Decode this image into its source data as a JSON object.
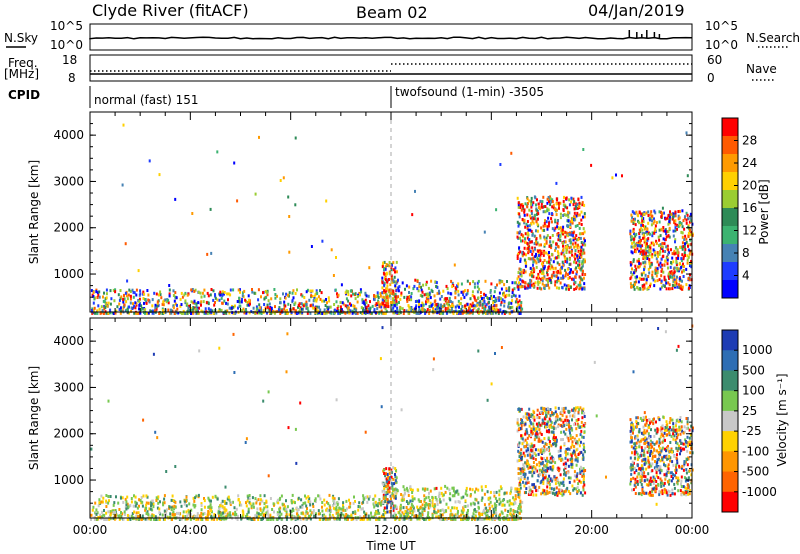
{
  "header": {
    "station": "Clyde River (fitACF)",
    "beam": "Beam 02",
    "date": "04/Jan/2019"
  },
  "top_panels": {
    "nsky_label": "N.Sky",
    "nsky_ticks": [
      "10^5",
      "10^0"
    ],
    "nsearch_label": "N.Search",
    "nsearch_ticks": [
      "10^5",
      "10^0"
    ],
    "freq_label_line1": "Freq.",
    "freq_label_line2": "[MHz]",
    "freq_ticks": [
      "18",
      "8"
    ],
    "nave_label": "Nave",
    "nave_ticks": [
      "60",
      "0"
    ],
    "cpid_label": "CPID",
    "cpid_segments": [
      {
        "start_hour": 0,
        "label": "normal (fast) 151"
      },
      {
        "start_hour": 12,
        "label": "twofsound (1-min) -3505"
      }
    ]
  },
  "chart_data": [
    {
      "type": "heatmap",
      "name": "power",
      "ylabel": "Slant Range [km]",
      "xlim_hours": [
        0,
        24
      ],
      "ylim": [
        180,
        4500
      ],
      "yticks": [
        1000,
        2000,
        3000,
        4000
      ],
      "colorbar_label": "Power [dB]",
      "colorbar_ticks": [
        "28",
        "24",
        "20",
        "16",
        "12",
        "8",
        "4"
      ],
      "colorbar_colors": [
        "#ff0000",
        "#ff5a00",
        "#ff9a00",
        "#ffd000",
        "#9acd32",
        "#2e8b57",
        "#3cb371",
        "#4682b4",
        "#1e3cff",
        "#0000ff"
      ],
      "regions": [
        {
          "x": [
            0.0,
            11.8
          ],
          "y": [
            180,
            700
          ],
          "level": "mixed-low"
        },
        {
          "x": [
            11.6,
            12.2
          ],
          "y": [
            300,
            1300
          ],
          "level": "high"
        },
        {
          "x": [
            12.0,
            17.2
          ],
          "y": [
            180,
            900
          ],
          "level": "mixed-low"
        },
        {
          "x": [
            17.0,
            19.7
          ],
          "y": [
            700,
            2700
          ],
          "level": "high"
        },
        {
          "x": [
            21.5,
            24.0
          ],
          "y": [
            700,
            2400
          ],
          "level": "high"
        }
      ]
    },
    {
      "type": "heatmap",
      "name": "velocity",
      "ylabel": "Slant Range [km]",
      "xlim_hours": [
        0,
        24
      ],
      "ylim": [
        180,
        4500
      ],
      "yticks": [
        1000,
        2000,
        3000,
        4000
      ],
      "colorbar_label": "Velocity [m s⁻¹]",
      "colorbar_ticks": [
        "1000",
        "500",
        "100",
        "25",
        "-25",
        "-100",
        "-500",
        "-1000"
      ],
      "colorbar_colors": [
        "#1e3cb4",
        "#2e6eb4",
        "#3c8c6e",
        "#78c850",
        "#c8c8c8",
        "#ffd200",
        "#ff9600",
        "#ff6400",
        "#ff0000"
      ],
      "regions": [
        {
          "x": [
            0.0,
            11.8
          ],
          "y": [
            180,
            700
          ],
          "level": "mixed-low"
        },
        {
          "x": [
            11.6,
            12.2
          ],
          "y": [
            300,
            1300
          ],
          "level": "mixed"
        },
        {
          "x": [
            12.0,
            17.2
          ],
          "y": [
            180,
            900
          ],
          "level": "mixed-low"
        },
        {
          "x": [
            17.0,
            19.7
          ],
          "y": [
            700,
            2600
          ],
          "level": "mixed"
        },
        {
          "x": [
            21.5,
            24.0
          ],
          "y": [
            700,
            2400
          ],
          "level": "mixed"
        }
      ]
    }
  ],
  "x_axis": {
    "ticks": [
      "00:00",
      "04:00",
      "08:00",
      "12:00",
      "16:00",
      "20:00",
      "00:00"
    ],
    "label": "Time UT"
  }
}
